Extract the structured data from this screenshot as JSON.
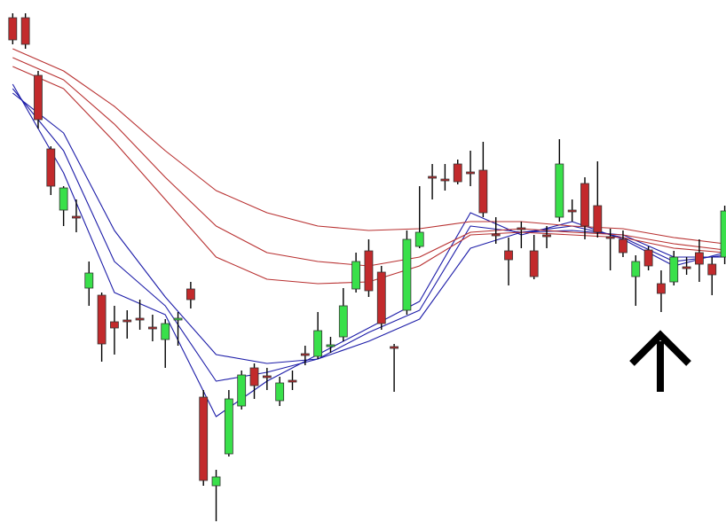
{
  "chart_data": {
    "type": "candlestick",
    "candles": {
      "open": [
        570,
        570,
        505,
        422,
        353,
        346,
        265,
        257,
        227,
        229,
        231,
        221,
        207,
        229,
        264,
        142,
        42,
        78,
        132,
        175,
        166,
        138,
        161,
        191,
        188,
        199,
        210,
        264,
        307,
        283,
        199,
        240,
        312,
        391,
        388,
        405,
        396,
        398,
        326,
        307,
        333,
        307,
        325,
        345,
        353,
        383,
        358,
        323,
        320,
        278,
        308,
        270,
        272,
        289,
        305,
        292,
        300
      ],
      "high": [
        575,
        575,
        510,
        425,
        380,
        365,
        295,
        260,
        245,
        240,
        252,
        235,
        230,
        238,
        272,
        150,
        60,
        150,
        172,
        180,
        175,
        165,
        172,
        200,
        238,
        210,
        265,
        305,
        320,
        290,
        202,
        330,
        380,
        405,
        405,
        410,
        420,
        430,
        345,
        322,
        340,
        325,
        335,
        433,
        365,
        390,
        408,
        332,
        330,
        302,
        312,
        285,
        307,
        300,
        320,
        300,
        358
      ],
      "low": [
        540,
        535,
        445,
        370,
        335,
        328,
        245,
        182,
        190,
        208,
        218,
        205,
        175,
        200,
        242,
        42,
        2,
        75,
        128,
        140,
        150,
        132,
        150,
        178,
        185,
        192,
        205,
        260,
        255,
        218,
        148,
        235,
        310,
        365,
        375,
        382,
        380,
        345,
        315,
        268,
        310,
        275,
        310,
        340,
        340,
        320,
        322,
        285,
        300,
        245,
        285,
        238,
        268,
        280,
        272,
        257,
        292
      ],
      "close": [
        545,
        540,
        455,
        380,
        378,
        344,
        282,
        202,
        220,
        227,
        229,
        219,
        225,
        231,
        252,
        48,
        52,
        140,
        167,
        155,
        164,
        158,
        159,
        189,
        217,
        201,
        245,
        295,
        262,
        225,
        197,
        320,
        328,
        389,
        386,
        385,
        394,
        350,
        324,
        297,
        331,
        278,
        323,
        405,
        351,
        335,
        328,
        321,
        305,
        295,
        290,
        259,
        300,
        287,
        292,
        280,
        352
      ]
    },
    "up_color": "#39e04a",
    "down_color": "#c22a2c",
    "line_x": [
      0,
      4,
      8,
      12,
      16,
      20,
      24,
      28,
      32,
      36,
      40,
      44,
      48,
      52,
      56
    ],
    "lines": [
      {
        "color": "#1c1ca8",
        "values": [
          495,
          395,
          260,
          235,
          120,
          160,
          190,
          220,
          250,
          350,
          325,
          340,
          320,
          290,
          305
        ]
      },
      {
        "color": "#1c1ca8",
        "values": [
          490,
          420,
          295,
          245,
          160,
          170,
          185,
          215,
          240,
          335,
          328,
          335,
          322,
          295,
          302
        ]
      },
      {
        "color": "#1c1ca8",
        "values": [
          485,
          440,
          330,
          255,
          190,
          180,
          185,
          205,
          230,
          310,
          328,
          330,
          325,
          300,
          300
        ]
      },
      {
        "color": "#b83030",
        "values": [
          515,
          490,
          430,
          365,
          300,
          275,
          270,
          272,
          290,
          325,
          328,
          325,
          322,
          310,
          305
        ]
      },
      {
        "color": "#b83030",
        "values": [
          525,
          500,
          450,
          390,
          335,
          305,
          295,
          290,
          300,
          328,
          332,
          328,
          325,
          315,
          308
        ]
      },
      {
        "color": "#b83030",
        "values": [
          535,
          510,
          470,
          420,
          375,
          350,
          335,
          330,
          332,
          340,
          340,
          335,
          332,
          322,
          315
        ]
      }
    ],
    "xlim": [
      -1,
      56.1
    ],
    "ylim": [
      0,
      590
    ]
  }
}
